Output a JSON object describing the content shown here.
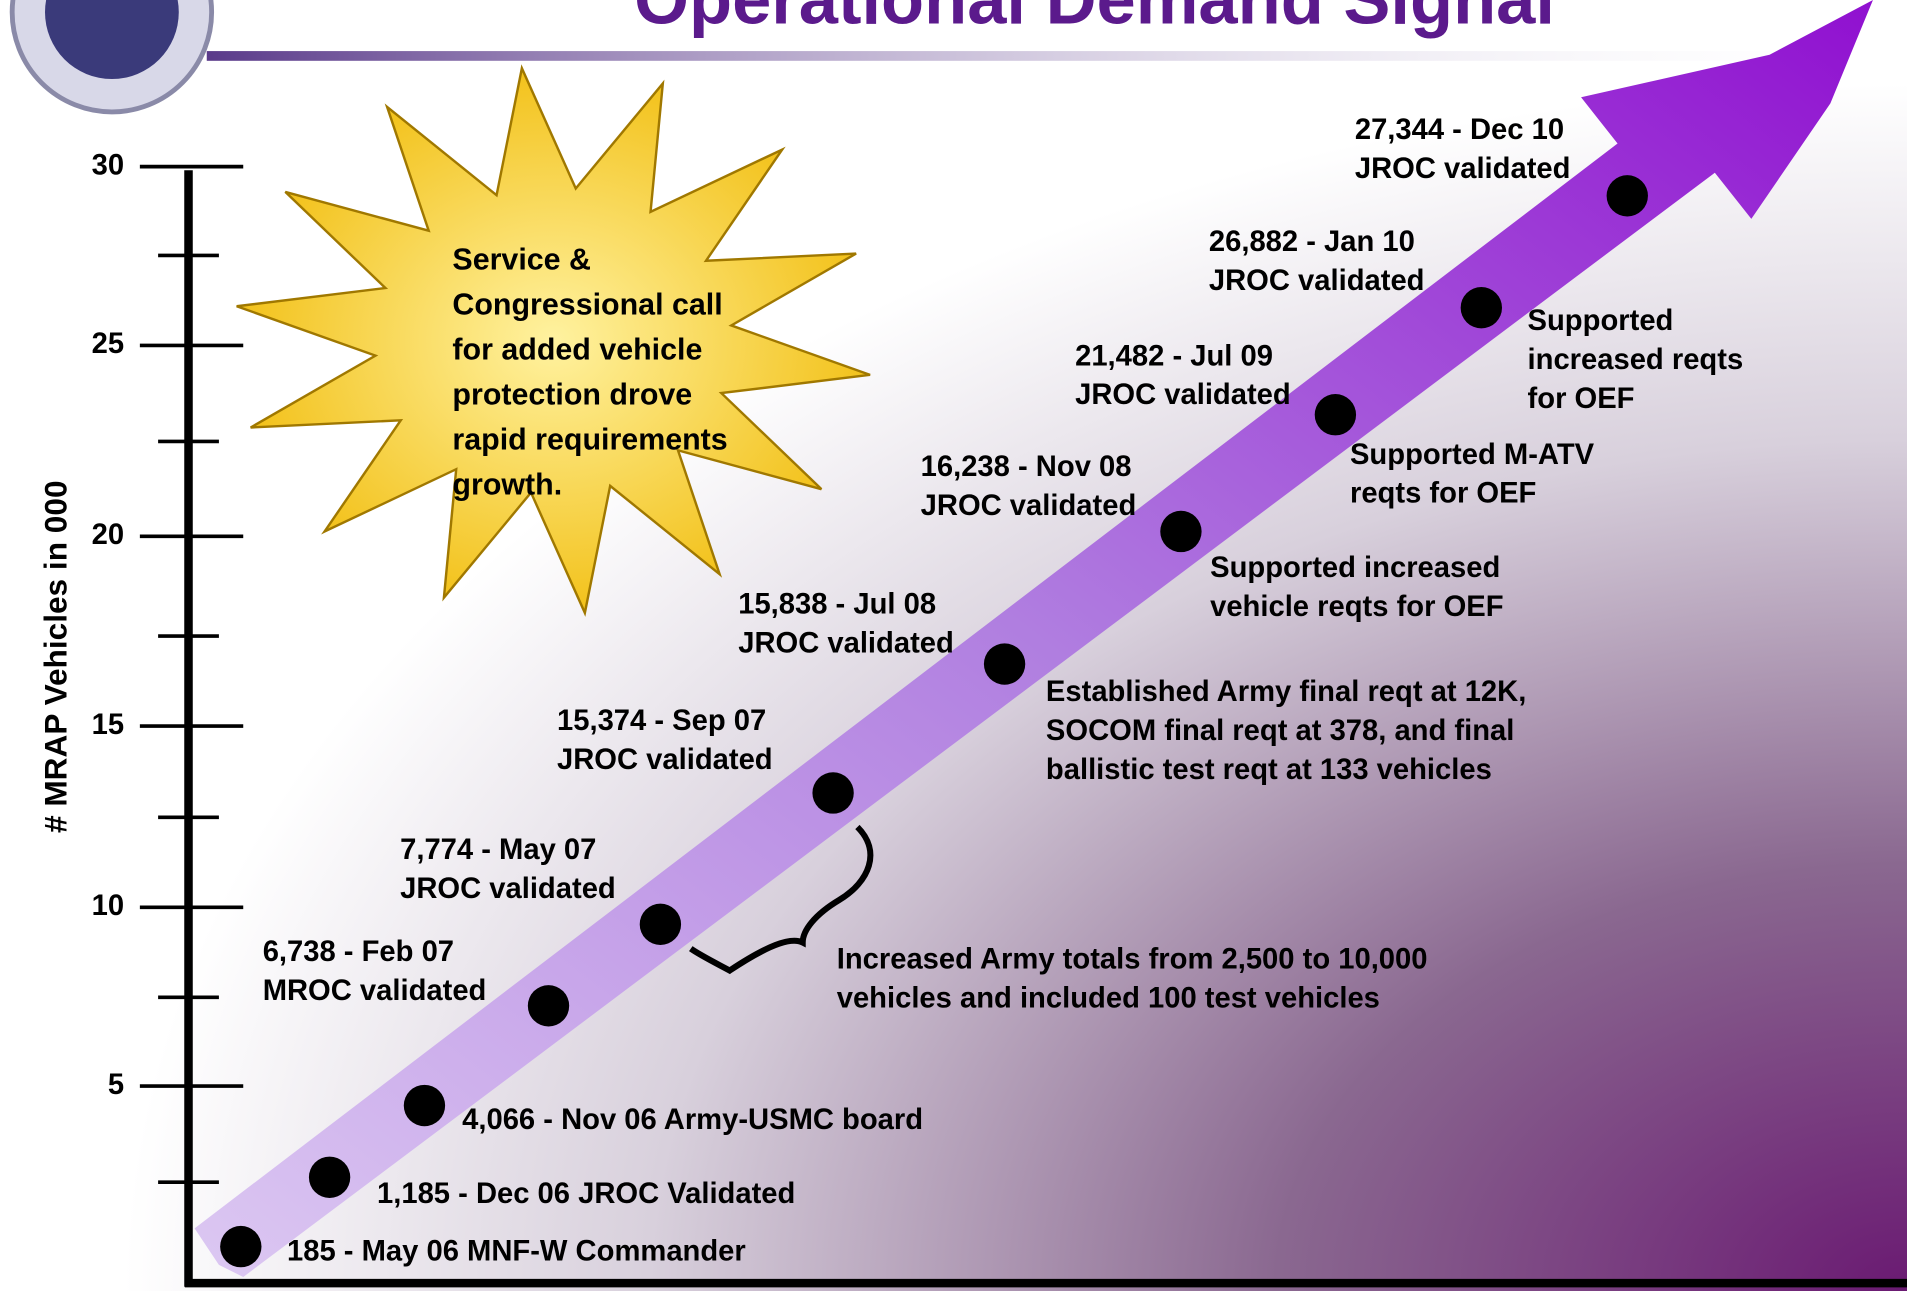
{
  "title": "Operational Demand Signal",
  "y_axis": {
    "label": "# MRAP Vehicles in 000",
    "ticks": [
      "30",
      "25",
      "20",
      "15",
      "10",
      "5"
    ]
  },
  "milestones": [
    {
      "lines": [
        "185 - May 06 MNF-W Commander"
      ]
    },
    {
      "lines": [
        "1,185 - Dec 06 JROC Validated"
      ]
    },
    {
      "lines": [
        "4,066 - Nov 06 Army-USMC board"
      ]
    },
    {
      "lines": [
        "6,738 - Feb 07",
        "MROC validated"
      ]
    },
    {
      "lines": [
        "7,774 - May 07",
        "JROC validated"
      ]
    },
    {
      "lines": [
        "15,374 - Sep 07",
        "JROC validated"
      ]
    },
    {
      "lines": [
        "15,838 - Jul 08",
        "JROC validated"
      ]
    },
    {
      "lines": [
        "16,238 - Nov 08",
        "JROC validated"
      ]
    },
    {
      "lines": [
        "21,482 - Jul 09",
        "JROC validated"
      ]
    },
    {
      "lines": [
        "26,882 - Jan 10",
        "JROC validated"
      ]
    },
    {
      "lines": [
        "27,344 - Dec 10",
        "JROC validated"
      ]
    }
  ],
  "callouts": [
    {
      "lines": [
        "Increased Army totals from 2,500 to 10,000",
        "vehicles and included 100 test vehicles"
      ]
    },
    {
      "lines": [
        "Established Army final reqt at 12K,",
        "SOCOM final reqt at 378, and final",
        "ballistic test reqt at 133 vehicles"
      ]
    },
    {
      "lines": [
        "Supported increased",
        "vehicle reqts for OEF"
      ]
    },
    {
      "lines": [
        "Supported M-ATV",
        "reqts for OEF"
      ]
    },
    {
      "lines": [
        "Supported",
        "increased reqts",
        "for OEF"
      ]
    }
  ],
  "star": {
    "lines": [
      "Service &",
      "Congressional call",
      "for added vehicle",
      "protection drove",
      "rapid requirements",
      "growth."
    ]
  }
}
